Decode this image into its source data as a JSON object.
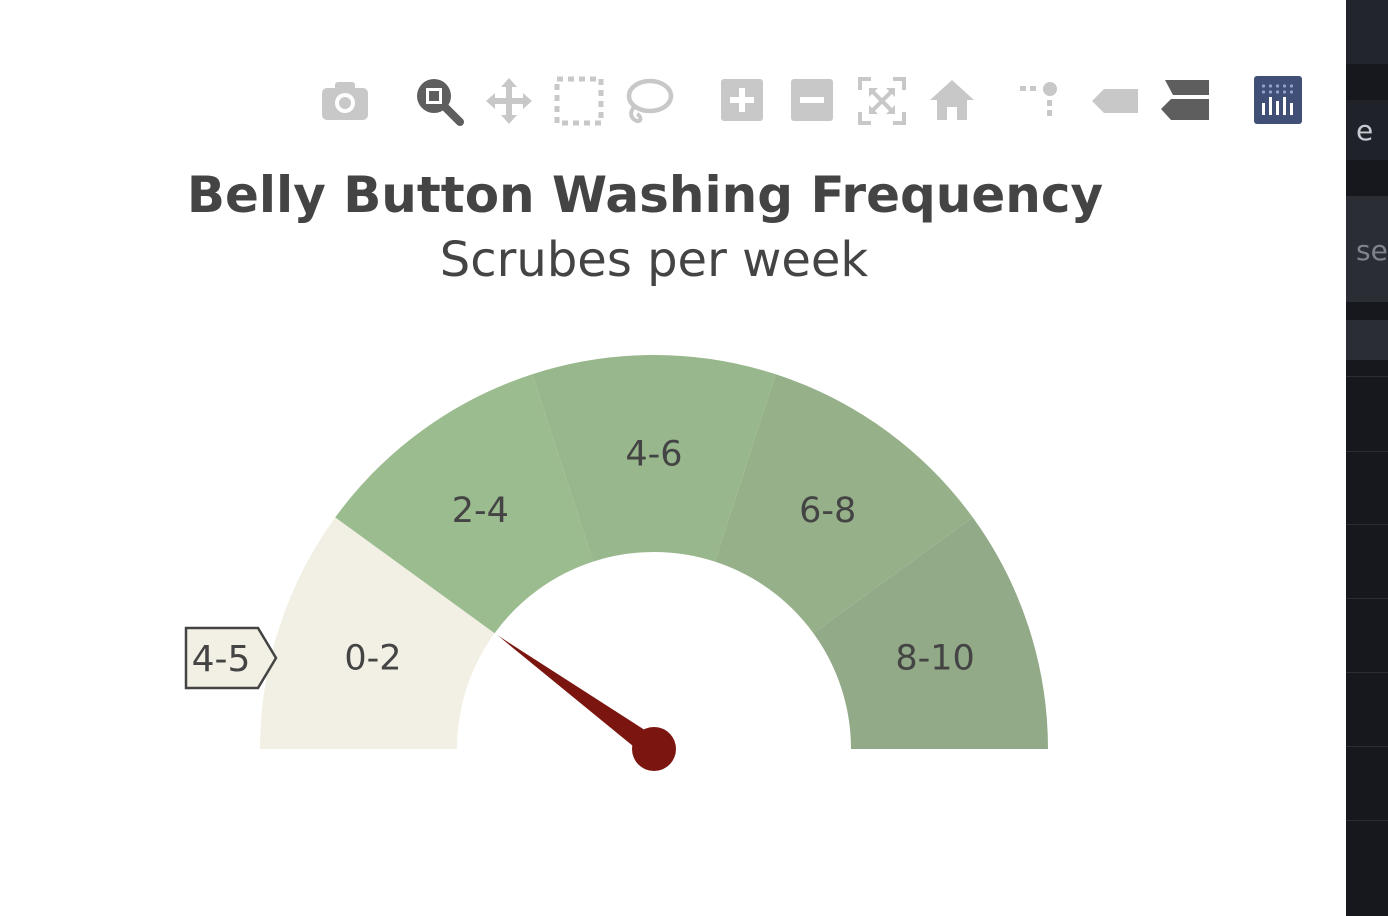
{
  "chart_data": {
    "type": "gauge",
    "title": "Belly Button Washing Frequency",
    "subtitle": "Scrubes per week",
    "range": [
      0,
      10
    ],
    "value": 2,
    "needle_color": "#7b1510",
    "bands": [
      {
        "label": "0-2",
        "from": 0,
        "to": 2,
        "color": "#f2f0e4"
      },
      {
        "label": "2-4",
        "from": 2,
        "to": 4,
        "color": "#9bbc8f"
      },
      {
        "label": "4-6",
        "from": 4,
        "to": 6,
        "color": "#98b78c"
      },
      {
        "label": "6-8",
        "from": 6,
        "to": 8,
        "color": "#96b08a"
      },
      {
        "label": "8-10",
        "from": 8,
        "to": 10,
        "color": "#93aa89"
      }
    ],
    "hover_label": "4-5"
  },
  "modebar": {
    "buttons": [
      {
        "name": "camera-icon",
        "tooltip": "Download plot as a png"
      },
      {
        "name": "zoom-icon",
        "tooltip": "Zoom",
        "active": true
      },
      {
        "name": "pan-icon",
        "tooltip": "Pan"
      },
      {
        "name": "box-select-icon",
        "tooltip": "Box Select"
      },
      {
        "name": "lasso-select-icon",
        "tooltip": "Lasso Select"
      },
      {
        "name": "zoom-in-icon",
        "tooltip": "Zoom in"
      },
      {
        "name": "zoom-out-icon",
        "tooltip": "Zoom out"
      },
      {
        "name": "autoscale-icon",
        "tooltip": "Autoscale"
      },
      {
        "name": "reset-axes-icon",
        "tooltip": "Reset axes"
      },
      {
        "name": "spike-lines-icon",
        "tooltip": "Toggle Spike Lines"
      },
      {
        "name": "hover-closest-icon",
        "tooltip": "Show closest data on hover"
      },
      {
        "name": "hover-compare-icon",
        "tooltip": "Compare data on hover"
      },
      {
        "name": "plotly-logo-icon",
        "tooltip": "Produced with Plotly"
      }
    ]
  },
  "side_panel": {
    "text_1": "e",
    "text_2": "se"
  },
  "colors": {
    "text": "#444444",
    "icon": "#c8c8c8",
    "icon_active": "#5e5e5e",
    "logo_bg": "#3f4f75"
  }
}
